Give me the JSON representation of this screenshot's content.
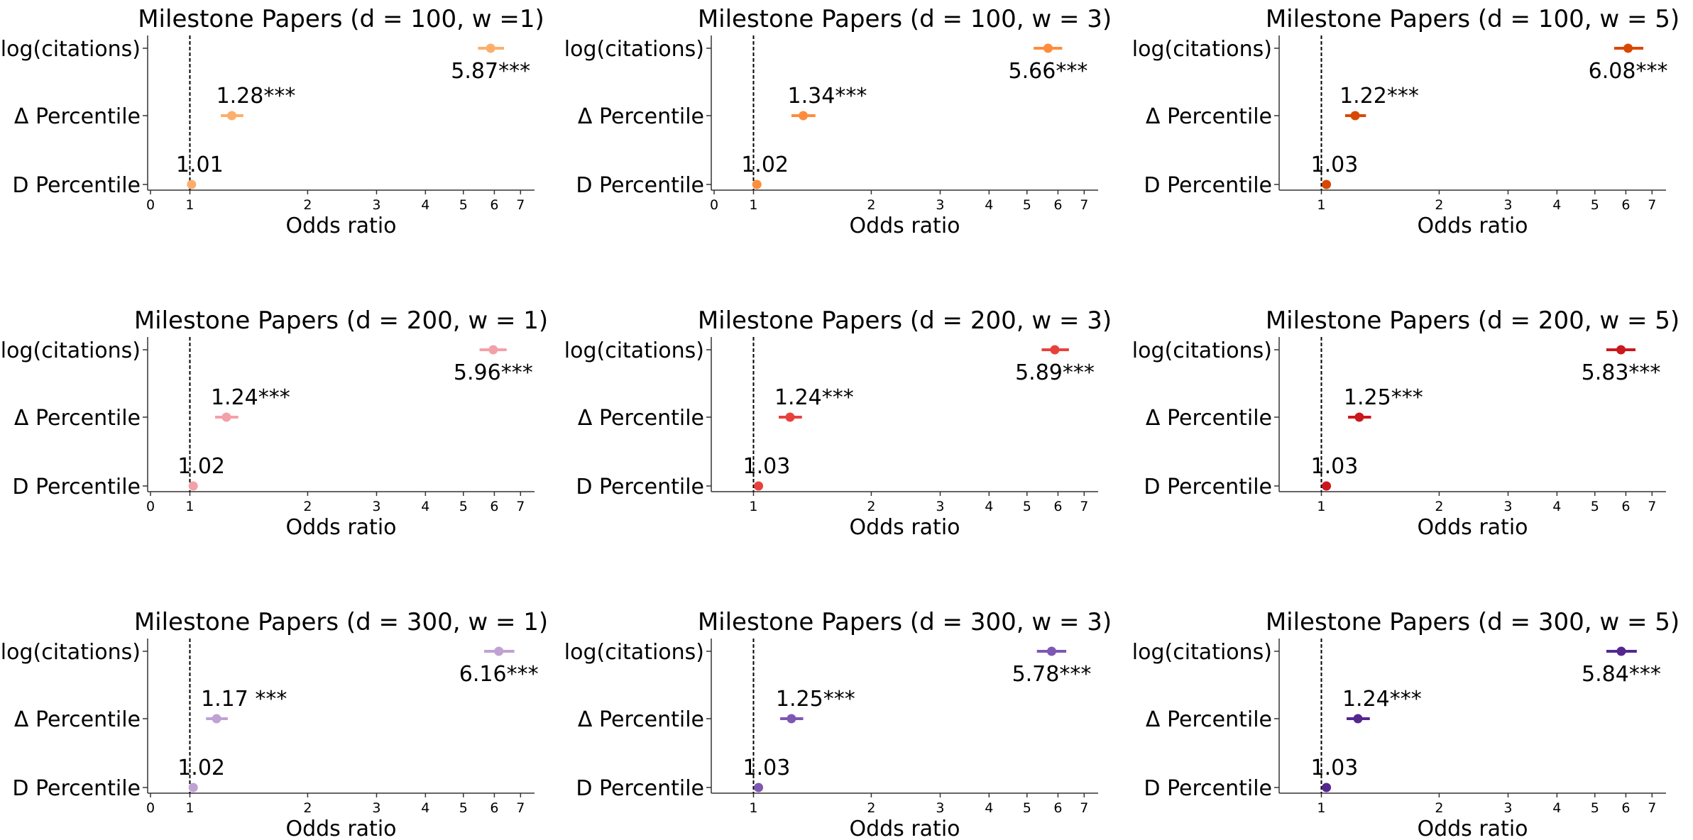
{
  "chart_data": [
    {
      "type": "forest",
      "title": "Milestone Papers (d = 100, w =1)",
      "xlabel": "Odds ratio",
      "categories": [
        "log(citations)",
        "Δ Percentile",
        "D Percentile"
      ],
      "values": [
        5.87,
        1.28,
        1.01
      ],
      "ci": [
        [
          5.45,
          6.35
        ],
        [
          1.2,
          1.37
        ],
        [
          1.0,
          1.02
        ]
      ],
      "labels": [
        "5.87***",
        "1.28***",
        "1.01"
      ],
      "xticks": [
        "0",
        "1",
        "2",
        "3",
        "4",
        "5",
        "6",
        "7"
      ],
      "xscale": "log",
      "reference_line": 1,
      "color": "#fdae6b"
    },
    {
      "type": "forest",
      "title": "Milestone Papers (d = 100, w = 3)",
      "xlabel": "Odds ratio",
      "categories": [
        "log(citations)",
        "Δ Percentile",
        "D Percentile"
      ],
      "values": [
        5.66,
        1.34,
        1.02
      ],
      "ci": [
        [
          5.2,
          6.15
        ],
        [
          1.25,
          1.44
        ],
        [
          1.0,
          1.04
        ]
      ],
      "labels": [
        "5.66***",
        "1.34***",
        "1.02"
      ],
      "xticks": [
        "0",
        "1",
        "2",
        "3",
        "4",
        "5",
        "6",
        "7"
      ],
      "xscale": "log",
      "reference_line": 1,
      "color": "#fd8d3c"
    },
    {
      "type": "forest",
      "title": "Milestone Papers (d = 100, w = 5)",
      "xlabel": "Odds ratio",
      "categories": [
        "log(citations)",
        "Δ Percentile",
        "D Percentile"
      ],
      "values": [
        6.08,
        1.22,
        1.03
      ],
      "ci": [
        [
          5.6,
          6.65
        ],
        [
          1.15,
          1.3
        ],
        [
          1.01,
          1.05
        ]
      ],
      "labels": [
        "6.08***",
        "1.22***",
        "1.03"
      ],
      "xticks": [
        "1",
        "2",
        "3",
        "4",
        "5",
        "6",
        "7"
      ],
      "xscale": "log",
      "reference_line": 1,
      "color": "#d94801"
    },
    {
      "type": "forest",
      "title": "Milestone Papers (d = 200, w = 1)",
      "xlabel": "Odds ratio",
      "categories": [
        "log(citations)",
        "Δ Percentile",
        "D Percentile"
      ],
      "values": [
        5.96,
        1.24,
        1.02
      ],
      "ci": [
        [
          5.5,
          6.45
        ],
        [
          1.16,
          1.33
        ],
        [
          1.0,
          1.04
        ]
      ],
      "labels": [
        "5.96***",
        "1.24***",
        "1.02"
      ],
      "xticks": [
        "0",
        "1",
        "2",
        "3",
        "4",
        "5",
        "6",
        "7"
      ],
      "xscale": "log",
      "reference_line": 1,
      "color": "#f4a0a8"
    },
    {
      "type": "forest",
      "title": "Milestone Papers (d = 200, w = 3)",
      "xlabel": "Odds ratio",
      "categories": [
        "log(citations)",
        "Δ Percentile",
        "D Percentile"
      ],
      "values": [
        5.89,
        1.24,
        1.03
      ],
      "ci": [
        [
          5.45,
          6.4
        ],
        [
          1.16,
          1.33
        ],
        [
          1.01,
          1.05
        ]
      ],
      "labels": [
        "5.89***",
        "1.24***",
        "1.03"
      ],
      "xticks": [
        "1",
        "2",
        "3",
        "4",
        "5",
        "6",
        "7"
      ],
      "xscale": "log",
      "reference_line": 1,
      "color": "#e8413c"
    },
    {
      "type": "forest",
      "title": "Milestone Papers (d = 200, w = 5)",
      "xlabel": "Odds ratio",
      "categories": [
        "log(citations)",
        "Δ Percentile",
        "D Percentile"
      ],
      "values": [
        5.83,
        1.25,
        1.03
      ],
      "ci": [
        [
          5.35,
          6.35
        ],
        [
          1.17,
          1.34
        ],
        [
          1.01,
          1.05
        ]
      ],
      "labels": [
        "5.83***",
        "1.25***",
        "1.03"
      ],
      "xticks": [
        "1",
        "2",
        "3",
        "4",
        "5",
        "6",
        "7"
      ],
      "xscale": "log",
      "reference_line": 1,
      "color": "#cb181d"
    },
    {
      "type": "forest",
      "title": "Milestone Papers (d = 300, w = 1)",
      "xlabel": "Odds ratio",
      "categories": [
        "log(citations)",
        "Δ Percentile",
        "D Percentile"
      ],
      "values": [
        6.16,
        1.17,
        1.02
      ],
      "ci": [
        [
          5.65,
          6.75
        ],
        [
          1.1,
          1.25
        ],
        [
          1.0,
          1.04
        ]
      ],
      "labels": [
        "6.16***",
        "1.17 ***",
        "1.02"
      ],
      "xticks": [
        "0",
        "1",
        "2",
        "3",
        "4",
        "5",
        "6",
        "7"
      ],
      "xscale": "log",
      "reference_line": 1,
      "color": "#bfa2d2"
    },
    {
      "type": "forest",
      "title": "Milestone Papers (d = 300, w = 3)",
      "xlabel": "Odds ratio",
      "categories": [
        "log(citations)",
        "Δ Percentile",
        "D Percentile"
      ],
      "values": [
        5.78,
        1.25,
        1.03
      ],
      "ci": [
        [
          5.3,
          6.3
        ],
        [
          1.17,
          1.34
        ],
        [
          1.01,
          1.05
        ]
      ],
      "labels": [
        "5.78***",
        "1.25***",
        "1.03"
      ],
      "xticks": [
        "1",
        "2",
        "3",
        "4",
        "5",
        "6",
        "7"
      ],
      "xscale": "log",
      "reference_line": 1,
      "color": "#7e57b2"
    },
    {
      "type": "forest",
      "title": "Milestone Papers (d = 300, w = 5)",
      "xlabel": "Odds ratio",
      "categories": [
        "log(citations)",
        "Δ Percentile",
        "D Percentile"
      ],
      "values": [
        5.84,
        1.24,
        1.03
      ],
      "ci": [
        [
          5.35,
          6.4
        ],
        [
          1.16,
          1.33
        ],
        [
          1.01,
          1.05
        ]
      ],
      "labels": [
        "5.84***",
        "1.24***",
        "1.03"
      ],
      "xticks": [
        "1",
        "2",
        "3",
        "4",
        "5",
        "6",
        "7"
      ],
      "xscale": "log",
      "reference_line": 1,
      "color": "#54278f"
    }
  ]
}
